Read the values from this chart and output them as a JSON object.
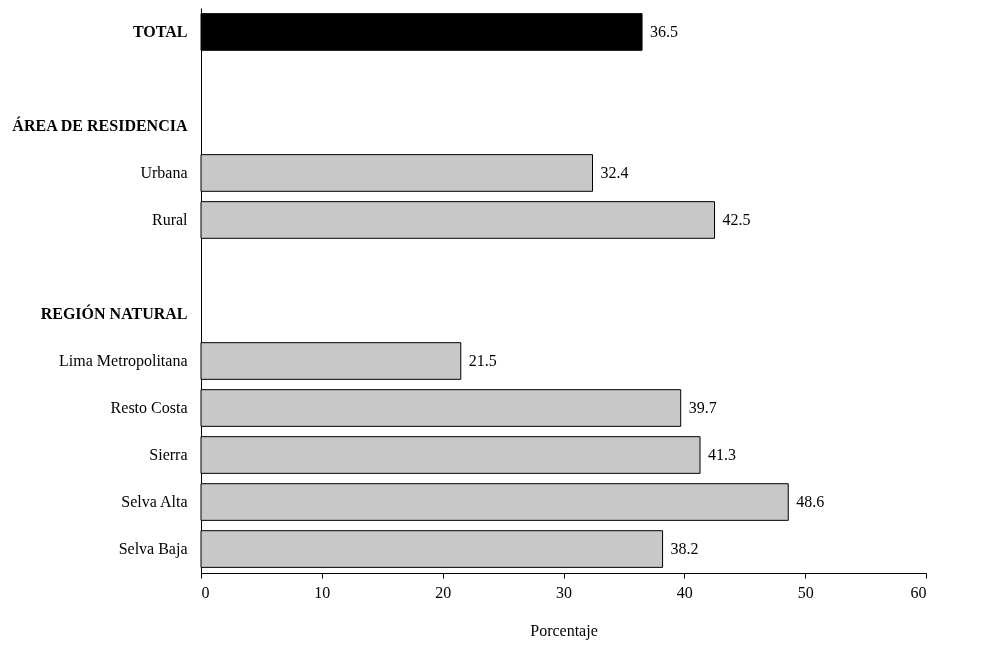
{
  "chart_data": {
    "type": "bar",
    "orientation": "horizontal",
    "xlabel": "Porcentaje",
    "categories": [
      "TOTAL",
      null,
      "ÁREA DE RESIDENCIA",
      "Urbana",
      "Rural",
      null,
      "REGIÓN NATURAL",
      "Lima Metropolitana",
      "Resto Costa",
      "Sierra",
      "Selva Alta",
      "Selva Baja"
    ],
    "values": [
      36.5,
      null,
      null,
      32.4,
      42.5,
      null,
      null,
      21.5,
      39.7,
      41.3,
      48.6,
      38.2
    ],
    "colors": [
      "#000000",
      null,
      null,
      "#c8c8c8",
      "#c8c8c8",
      null,
      null,
      "#c8c8c8",
      "#c8c8c8",
      "#c8c8c8",
      "#c8c8c8",
      "#c8c8c8"
    ],
    "xlim": [
      0,
      60
    ],
    "xticks": [
      0,
      10,
      20,
      30,
      40,
      50,
      60
    ],
    "data_labels": true,
    "grid": false
  }
}
